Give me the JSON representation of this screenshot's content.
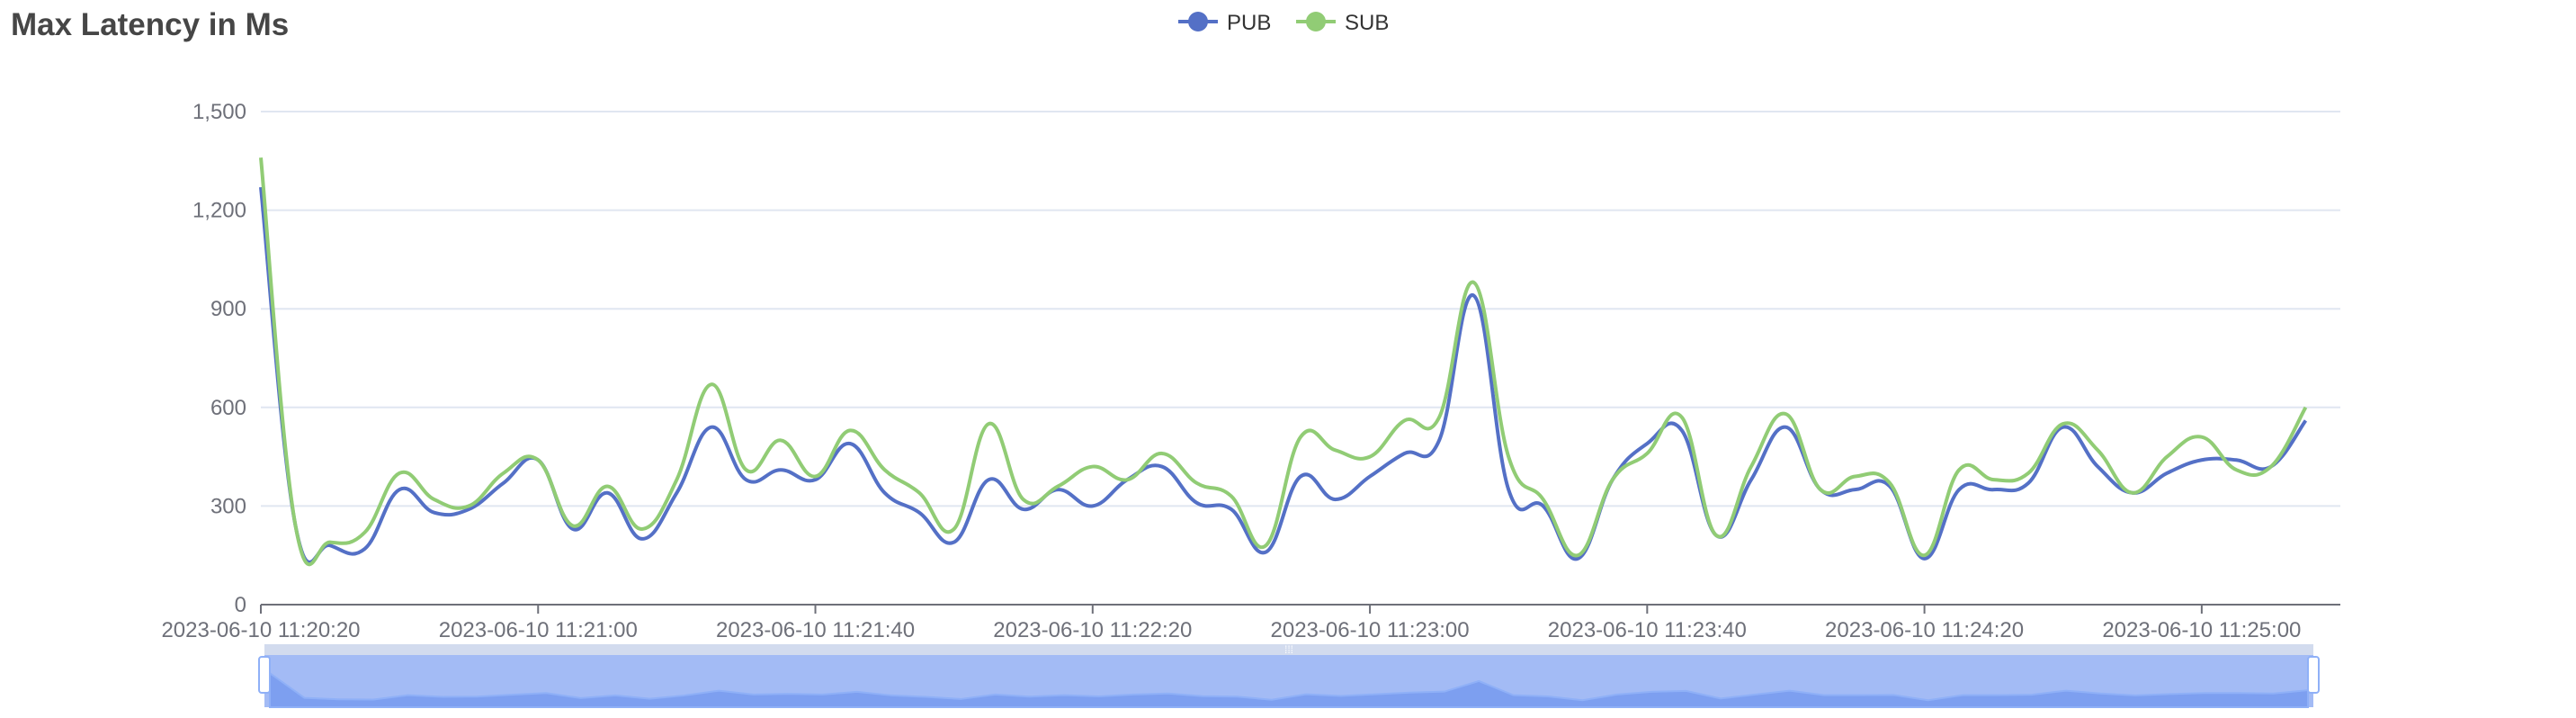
{
  "title": "Max Latency in Ms",
  "legend": [
    {
      "name": "PUB",
      "color": "#5470c6"
    },
    {
      "name": "SUB",
      "color": "#91cc75"
    }
  ],
  "chart_data": {
    "type": "line",
    "title": "Max Latency in Ms",
    "xlabel": "",
    "ylabel": "",
    "x_tick_labels": [
      "2023-06-10 11:20:20",
      "2023-06-10 11:21:00",
      "2023-06-10 11:21:40",
      "2023-06-10 11:22:20",
      "2023-06-10 11:23:00",
      "2023-06-10 11:23:40",
      "2023-06-10 11:24:20",
      "2023-06-10 11:25:00"
    ],
    "x_start": "2023-06-10 11:20:20",
    "x_end": "2023-06-10 11:25:20",
    "y_tick_labels": [
      "0",
      "300",
      "600",
      "900",
      "1,200",
      "1,500"
    ],
    "ylim": [
      0,
      1500
    ],
    "grid": true,
    "legend_position": "top-center",
    "smooth": true,
    "data_zoom_slider": true,
    "series": [
      {
        "name": "PUB",
        "color": "#5470c6",
        "values": [
          1270,
          240,
          180,
          170,
          350,
          280,
          290,
          370,
          440,
          230,
          340,
          200,
          340,
          540,
          380,
          410,
          380,
          490,
          340,
          280,
          190,
          380,
          290,
          350,
          300,
          380,
          420,
          310,
          290,
          160,
          390,
          320,
          390,
          460,
          500,
          940,
          350,
          300,
          140,
          380,
          490,
          530,
          210,
          380,
          540,
          350,
          350,
          360,
          140,
          350,
          350,
          370,
          540,
          420,
          340,
          400,
          440,
          440,
          420,
          560
        ]
      },
      {
        "name": "SUB",
        "color": "#91cc75",
        "values": [
          1360,
          240,
          190,
          220,
          400,
          320,
          300,
          400,
          440,
          240,
          360,
          230,
          380,
          670,
          410,
          500,
          390,
          530,
          410,
          340,
          230,
          550,
          320,
          360,
          420,
          380,
          460,
          370,
          330,
          180,
          510,
          470,
          450,
          560,
          570,
          980,
          450,
          320,
          150,
          380,
          460,
          570,
          210,
          420,
          580,
          350,
          390,
          370,
          150,
          410,
          380,
          400,
          550,
          470,
          340,
          450,
          510,
          410,
          420,
          600
        ]
      }
    ]
  }
}
